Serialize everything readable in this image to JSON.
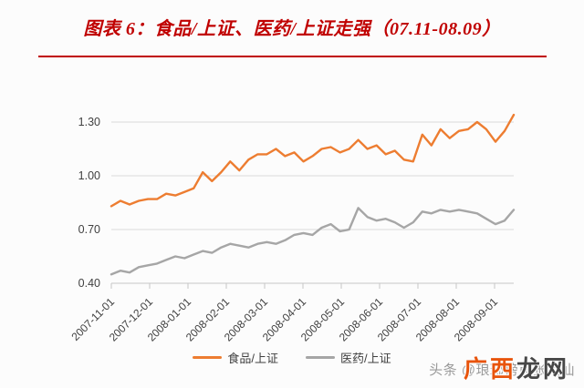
{
  "page": {
    "title": "图表 6：食品/上证、医药/上证走强（07.11-08.09）"
  },
  "colors": {
    "title_red": "#C00000",
    "divider_red": "#C00000",
    "food_orange": "#ED7D31",
    "pharma_gray": "#A6A6A6",
    "gridline": "#DADADA",
    "axis_line": "#C6C6C6",
    "axis_text": "#404040",
    "watermark_gray": "#9A9A9A",
    "watermark_orange": "#E8540C",
    "watermark_dark": "#474747"
  },
  "chart_data": {
    "type": "line",
    "title": "图表 6：食品/上证、医药/上证走强（07.11-08.09）",
    "xlabel": "",
    "ylabel": "",
    "ylim": [
      0.4,
      1.4
    ],
    "grid": "horizontal",
    "legend_position": "bottom",
    "x_tick_labels": [
      "2007-11-01",
      "2007-12-01",
      "2008-01-01",
      "2008-02-01",
      "2008-03-01",
      "2008-04-01",
      "2008-05-01",
      "2008-06-01",
      "2008-07-01",
      "2008-08-01",
      "2008-09-01"
    ],
    "yticks": [
      {
        "value": 1.3,
        "label": "1.30"
      },
      {
        "value": 1.0,
        "label": "1.00"
      },
      {
        "value": 0.7,
        "label": "0.70"
      },
      {
        "value": 0.4,
        "label": "0.40"
      }
    ],
    "x_note": "weekly samples from 2007-11-01 to mid-September 2008",
    "series": [
      {
        "name": "食品/上证",
        "color": "#ED7D31",
        "values": [
          0.83,
          0.86,
          0.84,
          0.86,
          0.87,
          0.87,
          0.9,
          0.89,
          0.91,
          0.93,
          1.02,
          0.97,
          1.02,
          1.08,
          1.03,
          1.09,
          1.12,
          1.12,
          1.15,
          1.11,
          1.13,
          1.08,
          1.11,
          1.15,
          1.16,
          1.13,
          1.15,
          1.2,
          1.15,
          1.17,
          1.12,
          1.14,
          1.09,
          1.08,
          1.23,
          1.17,
          1.26,
          1.21,
          1.25,
          1.26,
          1.3,
          1.26,
          1.19,
          1.25,
          1.34
        ]
      },
      {
        "name": "医药/上证",
        "color": "#A6A6A6",
        "values": [
          0.45,
          0.47,
          0.46,
          0.49,
          0.5,
          0.51,
          0.53,
          0.55,
          0.54,
          0.56,
          0.58,
          0.57,
          0.6,
          0.62,
          0.61,
          0.6,
          0.62,
          0.63,
          0.62,
          0.64,
          0.67,
          0.68,
          0.67,
          0.71,
          0.73,
          0.69,
          0.7,
          0.82,
          0.77,
          0.75,
          0.76,
          0.74,
          0.71,
          0.74,
          0.8,
          0.79,
          0.81,
          0.8,
          0.81,
          0.8,
          0.79,
          0.76,
          0.73,
          0.75,
          0.81
        ]
      }
    ]
  },
  "watermark": {
    "handle": "头条 @琅琊榜首张大仙",
    "overlay_left": "广西",
    "overlay_right": "龙网"
  }
}
